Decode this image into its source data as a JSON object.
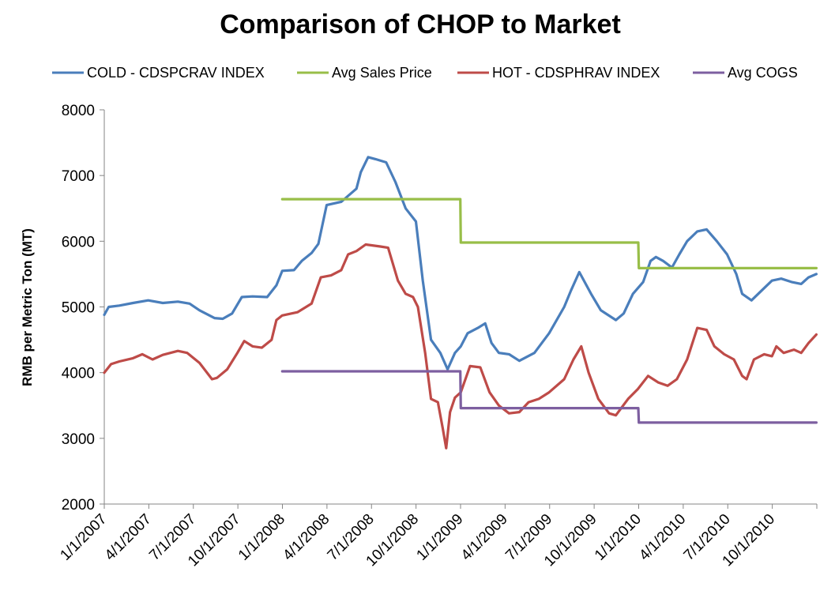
{
  "chart_data": {
    "type": "line",
    "title": "Comparison of CHOP to Market",
    "xlabel": "",
    "ylabel": "RMB per Metric Ton (MT)",
    "ylim": [
      2000,
      8000
    ],
    "yticks": [
      "2000",
      "3000",
      "4000",
      "5000",
      "6000",
      "7000",
      "8000"
    ],
    "xlim": [
      "2007-01-01",
      "2010-12-31"
    ],
    "xtick_labels": [
      "1/1/2007",
      "4/1/2007",
      "7/1/2007",
      "10/1/2007",
      "1/1/2008",
      "4/1/2008",
      "7/1/2008",
      "10/1/2008",
      "1/1/2009",
      "4/1/2009",
      "7/1/2009",
      "10/1/2009",
      "1/1/2010",
      "4/1/2010",
      "7/1/2010",
      "10/1/2010"
    ],
    "legend": [
      "COLD - CDSPCRAV INDEX",
      "Avg Sales Price",
      "HOT - CDSPHRAV INDEX",
      "Avg COGS"
    ],
    "legend_position": "top",
    "grid": false,
    "colors": {
      "cold": "#4A7EBB",
      "sales": "#98BE48",
      "hot": "#BE4B48",
      "cogs": "#7D5FA0"
    },
    "series": [
      {
        "name": "COLD - CDSPCRAV INDEX",
        "color": "#4A7EBB",
        "points": [
          [
            "2007-01-01",
            4880
          ],
          [
            "2007-01-10",
            5000
          ],
          [
            "2007-02-01",
            5020
          ],
          [
            "2007-03-01",
            5060
          ],
          [
            "2007-04-01",
            5100
          ],
          [
            "2007-05-01",
            5060
          ],
          [
            "2007-06-01",
            5080
          ],
          [
            "2007-06-25",
            5050
          ],
          [
            "2007-07-15",
            4950
          ],
          [
            "2007-08-15",
            4830
          ],
          [
            "2007-09-01",
            4820
          ],
          [
            "2007-09-20",
            4900
          ],
          [
            "2007-10-10",
            5150
          ],
          [
            "2007-11-01",
            5160
          ],
          [
            "2007-12-01",
            5150
          ],
          [
            "2007-12-20",
            5330
          ],
          [
            "2008-01-01",
            5550
          ],
          [
            "2008-01-25",
            5560
          ],
          [
            "2008-02-10",
            5700
          ],
          [
            "2008-03-01",
            5820
          ],
          [
            "2008-03-15",
            5960
          ],
          [
            "2008-04-01",
            6550
          ],
          [
            "2008-05-01",
            6600
          ],
          [
            "2008-06-01",
            6800
          ],
          [
            "2008-06-10",
            7050
          ],
          [
            "2008-06-25",
            7280
          ],
          [
            "2008-07-10",
            7250
          ],
          [
            "2008-08-01",
            7200
          ],
          [
            "2008-08-20",
            6900
          ],
          [
            "2008-09-10",
            6500
          ],
          [
            "2008-10-01",
            6300
          ],
          [
            "2008-10-15",
            5400
          ],
          [
            "2008-11-01",
            4500
          ],
          [
            "2008-11-20",
            4300
          ],
          [
            "2008-12-05",
            4050
          ],
          [
            "2008-12-20",
            4300
          ],
          [
            "2009-01-01",
            4400
          ],
          [
            "2009-01-15",
            4600
          ],
          [
            "2009-02-05",
            4680
          ],
          [
            "2009-02-20",
            4750
          ],
          [
            "2009-03-05",
            4450
          ],
          [
            "2009-03-20",
            4300
          ],
          [
            "2009-04-10",
            4280
          ],
          [
            "2009-05-01",
            4180
          ],
          [
            "2009-06-01",
            4300
          ],
          [
            "2009-07-01",
            4600
          ],
          [
            "2009-08-01",
            5000
          ],
          [
            "2009-08-15",
            5250
          ],
          [
            "2009-09-01",
            5530
          ],
          [
            "2009-09-25",
            5200
          ],
          [
            "2009-10-15",
            4950
          ],
          [
            "2009-11-15",
            4800
          ],
          [
            "2009-12-01",
            4900
          ],
          [
            "2009-12-20",
            5200
          ],
          [
            "2010-01-10",
            5380
          ],
          [
            "2010-01-25",
            5700
          ],
          [
            "2010-02-05",
            5760
          ],
          [
            "2010-02-20",
            5700
          ],
          [
            "2010-03-10",
            5600
          ],
          [
            "2010-03-25",
            5800
          ],
          [
            "2010-04-10",
            6000
          ],
          [
            "2010-05-01",
            6150
          ],
          [
            "2010-05-20",
            6180
          ],
          [
            "2010-06-10",
            6000
          ],
          [
            "2010-07-01",
            5800
          ],
          [
            "2010-07-20",
            5500
          ],
          [
            "2010-08-01",
            5200
          ],
          [
            "2010-08-20",
            5100
          ],
          [
            "2010-09-10",
            5250
          ],
          [
            "2010-10-01",
            5400
          ],
          [
            "2010-10-20",
            5430
          ],
          [
            "2010-11-10",
            5380
          ],
          [
            "2010-11-30",
            5350
          ],
          [
            "2010-12-15",
            5450
          ],
          [
            "2010-12-31",
            5500
          ]
        ]
      },
      {
        "name": "Avg Sales Price",
        "color": "#98BE48",
        "points": [
          [
            "2008-01-01",
            6640
          ],
          [
            "2008-12-31",
            6640
          ],
          [
            "2009-01-01",
            5980
          ],
          [
            "2009-12-31",
            5980
          ],
          [
            "2010-01-01",
            5590
          ],
          [
            "2010-12-31",
            5590
          ]
        ]
      },
      {
        "name": "HOT - CDSPHRAV INDEX",
        "color": "#BE4B48",
        "points": [
          [
            "2007-01-01",
            4000
          ],
          [
            "2007-01-15",
            4130
          ],
          [
            "2007-02-01",
            4170
          ],
          [
            "2007-03-01",
            4220
          ],
          [
            "2007-03-20",
            4280
          ],
          [
            "2007-04-10",
            4200
          ],
          [
            "2007-05-01",
            4270
          ],
          [
            "2007-06-01",
            4330
          ],
          [
            "2007-06-20",
            4300
          ],
          [
            "2007-07-15",
            4150
          ],
          [
            "2007-08-10",
            3900
          ],
          [
            "2007-08-20",
            3920
          ],
          [
            "2007-09-10",
            4050
          ],
          [
            "2007-10-01",
            4300
          ],
          [
            "2007-10-15",
            4480
          ],
          [
            "2007-11-01",
            4400
          ],
          [
            "2007-11-20",
            4380
          ],
          [
            "2007-12-10",
            4500
          ],
          [
            "2007-12-20",
            4800
          ],
          [
            "2008-01-01",
            4870
          ],
          [
            "2008-02-01",
            4920
          ],
          [
            "2008-03-01",
            5050
          ],
          [
            "2008-03-20",
            5450
          ],
          [
            "2008-04-10",
            5480
          ],
          [
            "2008-05-01",
            5560
          ],
          [
            "2008-05-15",
            5800
          ],
          [
            "2008-06-01",
            5850
          ],
          [
            "2008-06-20",
            5950
          ],
          [
            "2008-07-20",
            5920
          ],
          [
            "2008-08-05",
            5900
          ],
          [
            "2008-08-25",
            5400
          ],
          [
            "2008-09-10",
            5200
          ],
          [
            "2008-09-25",
            5150
          ],
          [
            "2008-10-05",
            5000
          ],
          [
            "2008-10-20",
            4300
          ],
          [
            "2008-11-01",
            3600
          ],
          [
            "2008-11-15",
            3550
          ],
          [
            "2008-11-25",
            3150
          ],
          [
            "2008-12-02",
            2850
          ],
          [
            "2008-12-10",
            3400
          ],
          [
            "2008-12-20",
            3620
          ],
          [
            "2009-01-01",
            3700
          ],
          [
            "2009-01-20",
            4100
          ],
          [
            "2009-02-10",
            4080
          ],
          [
            "2009-03-01",
            3700
          ],
          [
            "2009-03-20",
            3500
          ],
          [
            "2009-04-10",
            3380
          ],
          [
            "2009-05-01",
            3400
          ],
          [
            "2009-05-20",
            3550
          ],
          [
            "2009-06-10",
            3600
          ],
          [
            "2009-07-01",
            3700
          ],
          [
            "2009-08-01",
            3900
          ],
          [
            "2009-08-20",
            4200
          ],
          [
            "2009-09-05",
            4400
          ],
          [
            "2009-09-20",
            4000
          ],
          [
            "2009-10-10",
            3600
          ],
          [
            "2009-11-01",
            3380
          ],
          [
            "2009-11-15",
            3350
          ],
          [
            "2009-12-10",
            3600
          ],
          [
            "2009-12-30",
            3750
          ],
          [
            "2010-01-20",
            3950
          ],
          [
            "2010-02-10",
            3850
          ],
          [
            "2010-03-01",
            3800
          ],
          [
            "2010-03-20",
            3900
          ],
          [
            "2010-04-10",
            4200
          ],
          [
            "2010-05-01",
            4680
          ],
          [
            "2010-05-20",
            4650
          ],
          [
            "2010-06-05",
            4400
          ],
          [
            "2010-06-25",
            4280
          ],
          [
            "2010-07-15",
            4200
          ],
          [
            "2010-08-01",
            3950
          ],
          [
            "2010-08-10",
            3900
          ],
          [
            "2010-08-25",
            4200
          ],
          [
            "2010-09-15",
            4280
          ],
          [
            "2010-10-01",
            4250
          ],
          [
            "2010-10-10",
            4400
          ],
          [
            "2010-10-25",
            4300
          ],
          [
            "2010-11-15",
            4350
          ],
          [
            "2010-11-30",
            4300
          ],
          [
            "2010-12-15",
            4450
          ],
          [
            "2010-12-31",
            4580
          ]
        ]
      },
      {
        "name": "Avg COGS",
        "color": "#7D5FA0",
        "points": [
          [
            "2008-01-01",
            4020
          ],
          [
            "2008-12-31",
            4020
          ],
          [
            "2009-01-01",
            3460
          ],
          [
            "2009-12-31",
            3460
          ],
          [
            "2010-01-01",
            3240
          ],
          [
            "2010-12-31",
            3240
          ]
        ]
      }
    ]
  }
}
